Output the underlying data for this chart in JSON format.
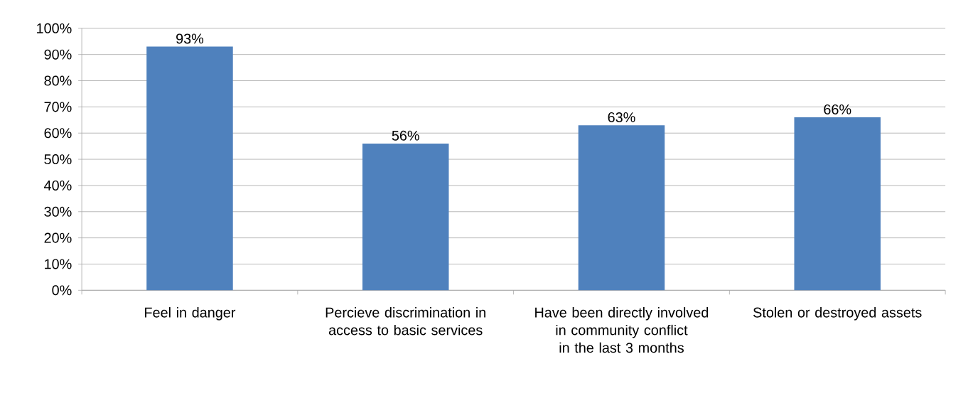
{
  "chart_data": {
    "type": "bar",
    "categories": [
      "Feel in danger",
      "Percieve discrimination in access to basic services",
      "Have been directly involved in community conflict in the last 3 months",
      "Stolen or destroyed assets"
    ],
    "values": [
      93,
      56,
      63,
      66
    ],
    "value_labels": [
      "93%",
      "56%",
      "63%",
      "66%"
    ],
    "color": "#4f81bd",
    "ylim": [
      0,
      100
    ],
    "yticks": [
      {
        "value": 0,
        "label": "0%"
      },
      {
        "value": 10,
        "label": "10%"
      },
      {
        "value": 20,
        "label": "20%"
      },
      {
        "value": 30,
        "label": "30%"
      },
      {
        "value": 40,
        "label": "40%"
      },
      {
        "value": 50,
        "label": "50%"
      },
      {
        "value": 60,
        "label": "60%"
      },
      {
        "value": 70,
        "label": "70%"
      },
      {
        "value": 80,
        "label": "80%"
      },
      {
        "value": 90,
        "label": "90%"
      },
      {
        "value": 100,
        "label": "100%"
      }
    ],
    "grid": "y"
  }
}
